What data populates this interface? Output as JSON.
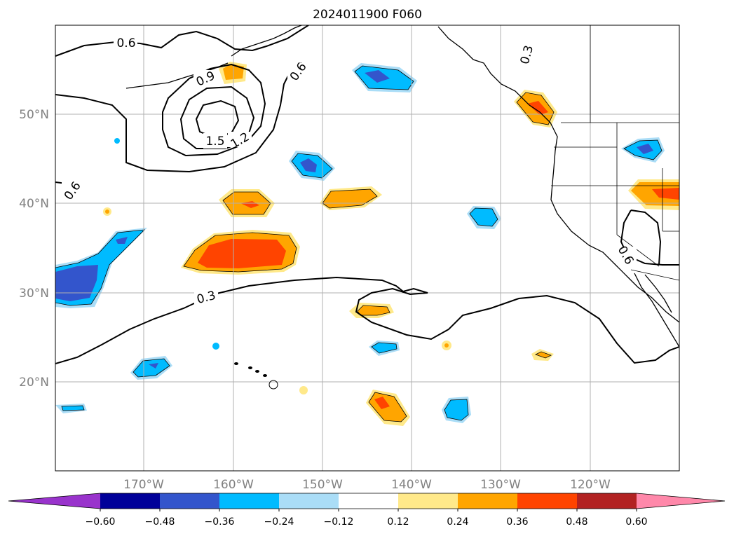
{
  "title": "2024011900 F060",
  "lat_labels": [
    "50°N",
    "40°N",
    "30°N",
    "20°N"
  ],
  "lon_labels": [
    "170°W",
    "160°W",
    "150°W",
    "140°W",
    "130°W",
    "120°W"
  ],
  "colorbar": {
    "ticks": [
      "−0.60",
      "−0.48",
      "−0.36",
      "−0.24",
      "−0.12",
      "0.12",
      "0.24",
      "0.36",
      "0.48",
      "0.60"
    ],
    "colors": [
      "#9933cc",
      "#000099",
      "#3355cc",
      "#00bbff",
      "#aaddf7",
      "#ffffff",
      "#ffe98a",
      "#ffa500",
      "#ff4400",
      "#b22222",
      "#ff88aa"
    ]
  },
  "contour_labels": [
    "0.6",
    "0.9",
    "1.2",
    "1.5",
    "0.6",
    "0.6",
    "0.3",
    "0.3",
    "0.6"
  ]
}
